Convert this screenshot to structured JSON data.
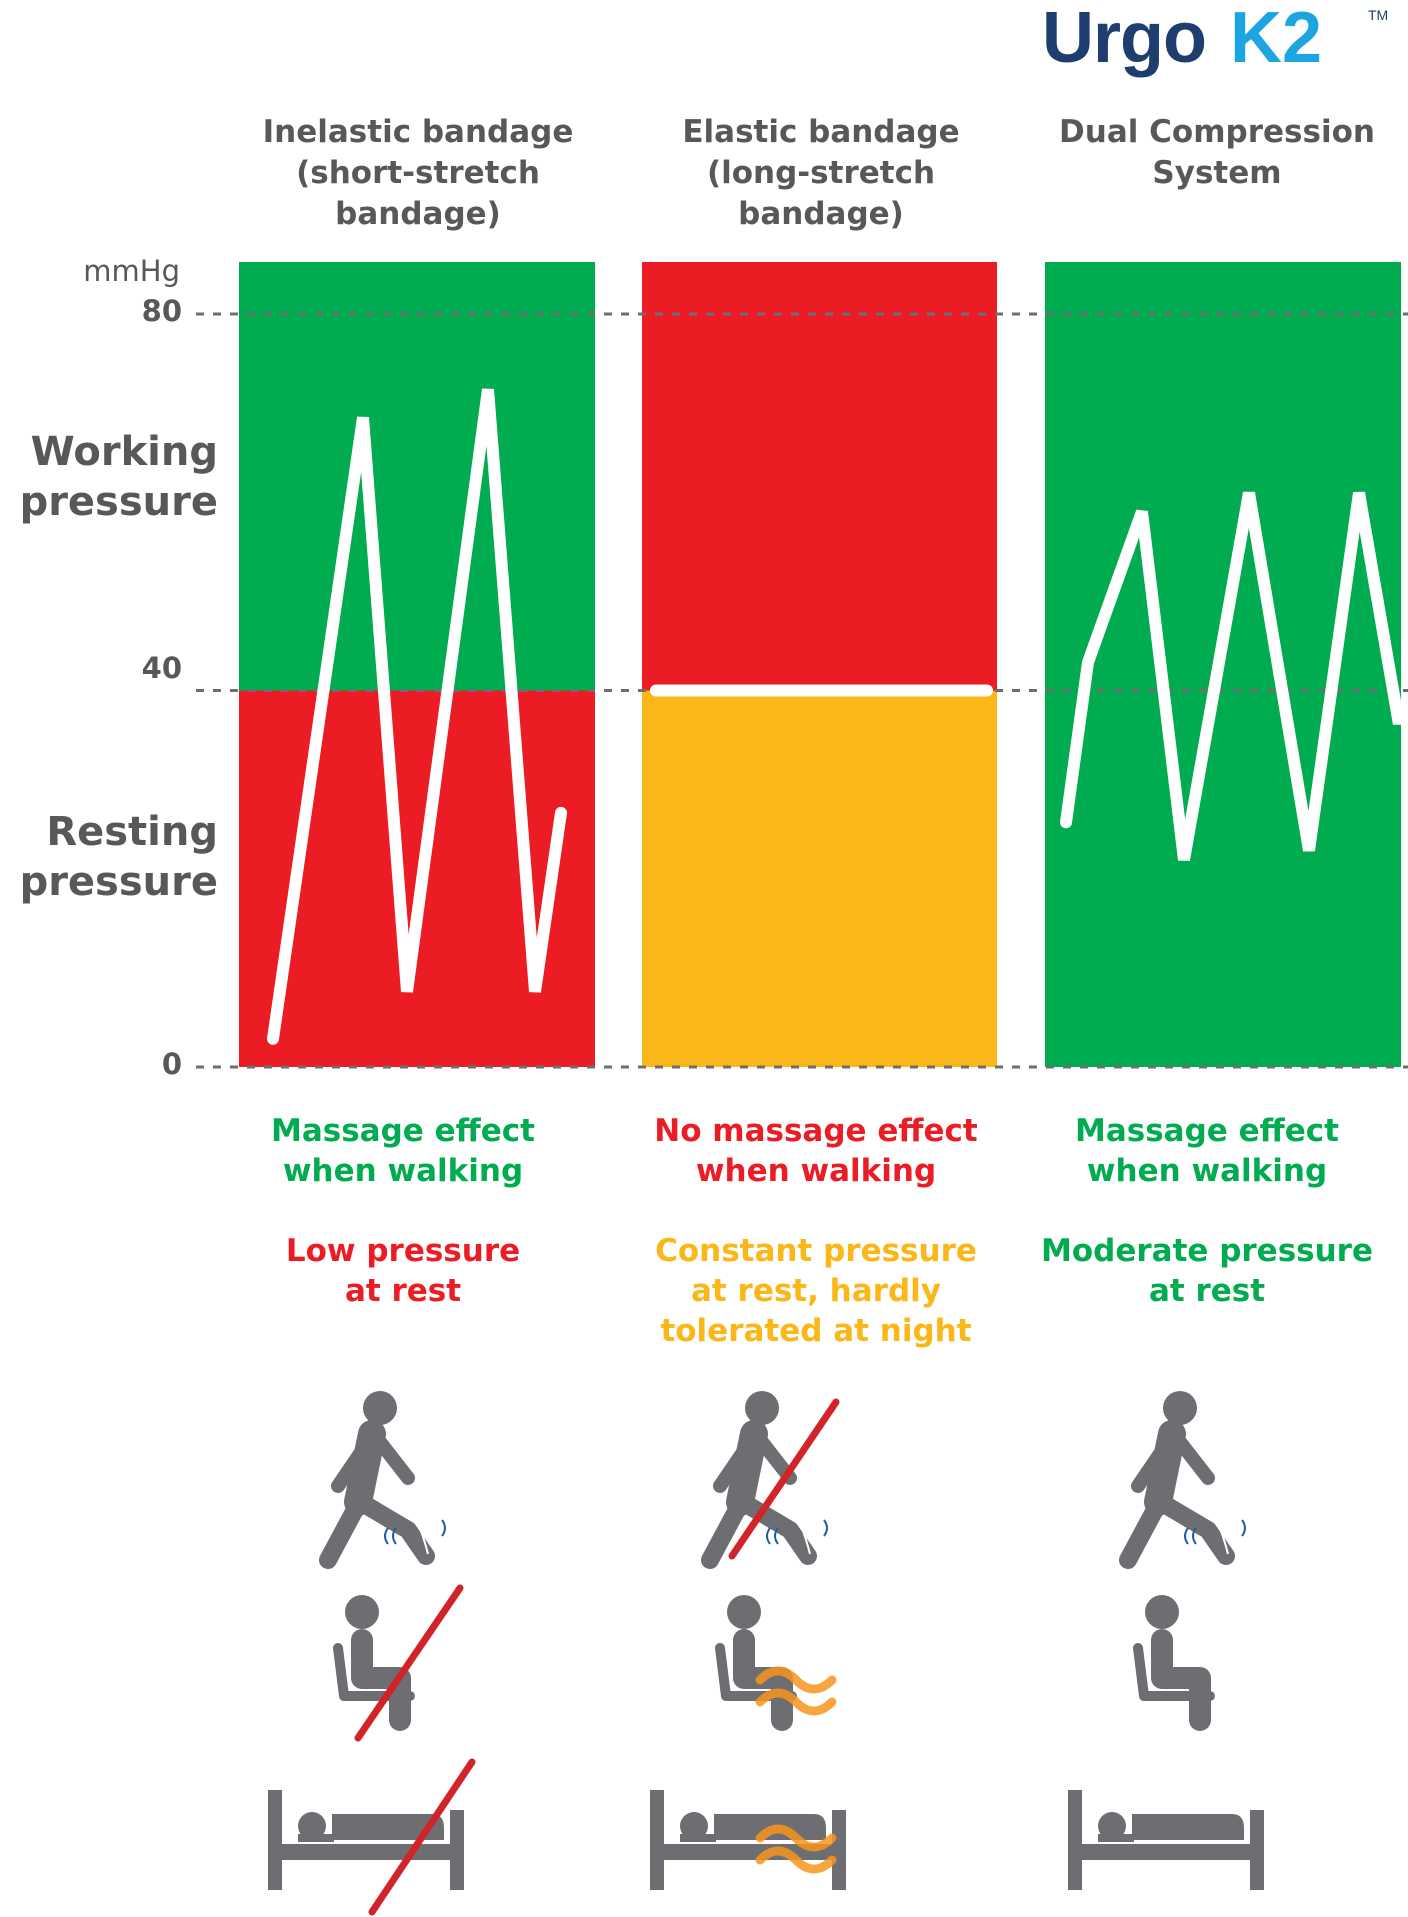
{
  "brand": {
    "name": "UrgoK2",
    "trademark": "TM",
    "color": "#1d3e6e",
    "accent": "#1ca5e0"
  },
  "colors": {
    "green": "#00ac4f",
    "red": "#ec1c24",
    "yellow": "#fbb617",
    "gray": "#6d6e71",
    "text_gray": "#58585a"
  },
  "columns": [
    {
      "title": [
        "Inelastic bandage",
        "(short-stretch",
        "bandage)"
      ]
    },
    {
      "title": [
        "Elastic bandage",
        "(long-stretch",
        "bandage)"
      ]
    },
    {
      "title": [
        "Dual Compression",
        "System"
      ]
    }
  ],
  "axis": {
    "unit": "mmHg",
    "ticks": [
      80,
      40,
      0
    ],
    "labels": {
      "working": [
        "Working",
        "pressure"
      ],
      "resting": [
        "Resting",
        "pressure"
      ]
    }
  },
  "chart_data": [
    {
      "type": "line",
      "name": "Inelastic bandage (short-stretch bandage)",
      "ylim": [
        0,
        90
      ],
      "zones": [
        {
          "from": 40,
          "to": 90,
          "color": "green"
        },
        {
          "from": 0,
          "to": 40,
          "color": "red"
        }
      ],
      "x": [
        0,
        1,
        2,
        3,
        4,
        5
      ],
      "y": [
        3,
        69,
        8,
        72,
        8,
        27
      ]
    },
    {
      "type": "line",
      "name": "Elastic bandage (long-stretch bandage)",
      "ylim": [
        0,
        90
      ],
      "zones": [
        {
          "from": 40,
          "to": 90,
          "color": "red"
        },
        {
          "from": 0,
          "to": 40,
          "color": "yellow"
        }
      ],
      "x": [
        0,
        1
      ],
      "y": [
        40,
        40
      ]
    },
    {
      "type": "line",
      "name": "Dual Compression System",
      "ylim": [
        0,
        90
      ],
      "zones": [
        {
          "from": 0,
          "to": 90,
          "color": "green"
        }
      ],
      "x": [
        0,
        1,
        2,
        3,
        4,
        5,
        6,
        7,
        8
      ],
      "y": [
        26,
        43,
        59,
        22,
        61,
        23,
        61,
        37,
        37
      ]
    }
  ],
  "effects": [
    {
      "massage": {
        "text": [
          "Massage effect",
          "when walking"
        ],
        "color": "#00ac4f"
      },
      "rest": {
        "text": [
          "Low pressure",
          "at rest"
        ],
        "color": "#ec1c24"
      },
      "icons": {
        "walk": "ok",
        "sit": "crossed",
        "bed": "crossed"
      }
    },
    {
      "massage": {
        "text": [
          "No massage effect",
          "when walking"
        ],
        "color": "#ec1c24"
      },
      "rest": {
        "text": [
          "Constant pressure",
          "at rest, hardly",
          "tolerated at night"
        ],
        "color": "#fbb617"
      },
      "icons": {
        "walk": "crossed",
        "sit": "wavy",
        "bed": "wavy"
      }
    },
    {
      "massage": {
        "text": [
          "Massage effect",
          "when walking"
        ],
        "color": "#00ac4f"
      },
      "rest": {
        "text": [
          "Moderate pressure",
          "at rest"
        ],
        "color": "#00ac4f"
      },
      "icons": {
        "walk": "ok",
        "sit": "ok",
        "bed": "ok"
      }
    }
  ]
}
